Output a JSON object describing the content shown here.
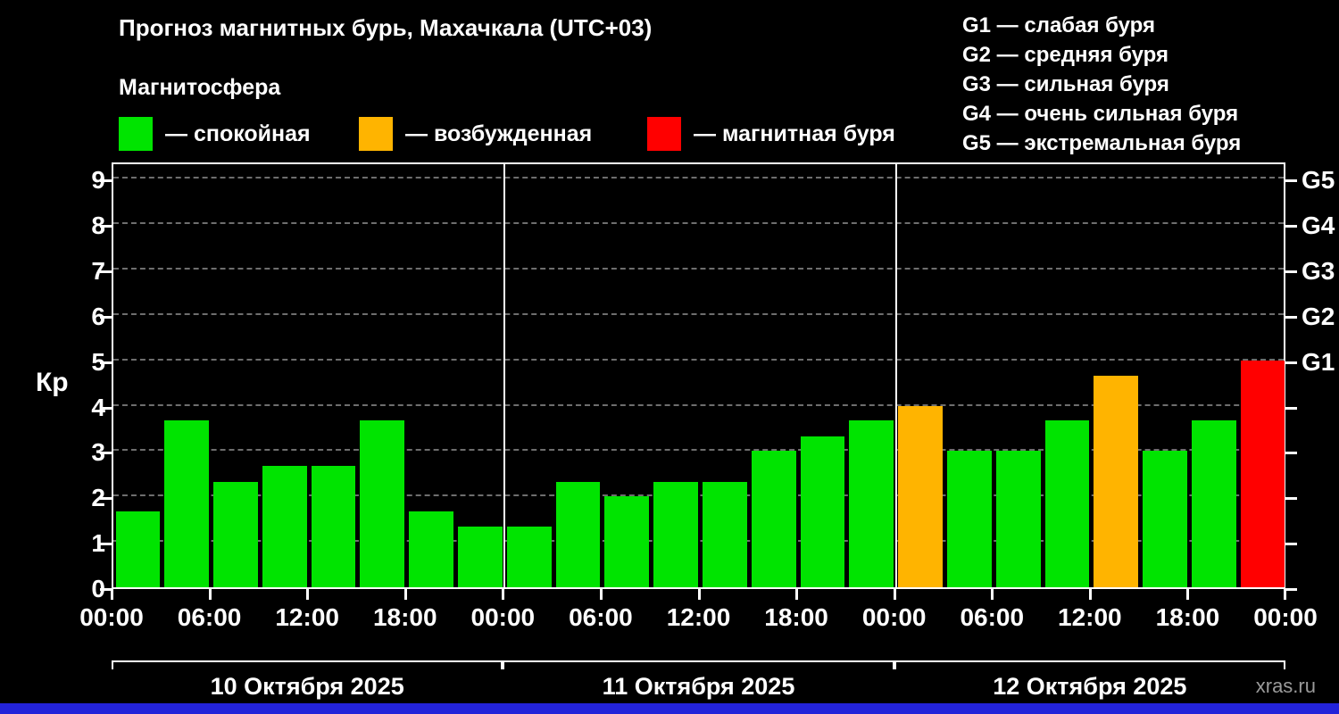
{
  "header": {
    "title": "Прогноз магнитных бурь, Махачкала (UTC+03)",
    "subtitle": "Магнитосфера"
  },
  "legend": [
    {
      "name": "quiet",
      "label": "— спокойная",
      "color": "#00e400"
    },
    {
      "name": "excited",
      "label": "— возбужденная",
      "color": "#ffb400"
    },
    {
      "name": "storm",
      "label": "— магнитная буря",
      "color": "#ff0000"
    }
  ],
  "g_legend": [
    "G1 — слабая буря",
    "G2 — средняя буря",
    "G3 — сильная буря",
    "G4 — очень сильная буря",
    "G5 — экстремальная буря"
  ],
  "watermark": "xras.ru",
  "footer_bar_color": "#2323d9",
  "chart_data": {
    "type": "bar",
    "title": "Прогноз магнитных бурь, Махачкала (UTC+03)",
    "ylabel": "Кр",
    "ylim": [
      0,
      9.4
    ],
    "yticks": [
      0,
      1,
      2,
      3,
      4,
      5,
      6,
      7,
      8,
      9
    ],
    "right_axis_ticks": [
      {
        "label": "G1",
        "value": 5
      },
      {
        "label": "G2",
        "value": 6
      },
      {
        "label": "G3",
        "value": 7
      },
      {
        "label": "G4",
        "value": 8
      },
      {
        "label": "G5",
        "value": 9
      }
    ],
    "x_tick_labels": [
      "00:00",
      "06:00",
      "12:00",
      "18:00"
    ],
    "grid": "dashed-horizontal",
    "legend_position": "top",
    "bar_colors": {
      "quiet": "#00e400",
      "excited": "#ffb400",
      "storm": "#ff0000"
    },
    "color_thresholds": {
      "excited_min": 4,
      "storm_min": 5
    },
    "days": [
      {
        "date": "10 Октября 2025",
        "values": [
          1.67,
          3.67,
          2.33,
          2.67,
          2.67,
          3.67,
          1.67,
          1.33
        ]
      },
      {
        "date": "11 Октября 2025",
        "values": [
          1.33,
          2.33,
          2.0,
          2.33,
          2.33,
          3.0,
          3.33,
          3.67
        ]
      },
      {
        "date": "12 Октября 2025",
        "values": [
          4.0,
          3.0,
          3.0,
          3.67,
          4.67,
          3.0,
          3.67,
          5.0
        ]
      }
    ]
  }
}
